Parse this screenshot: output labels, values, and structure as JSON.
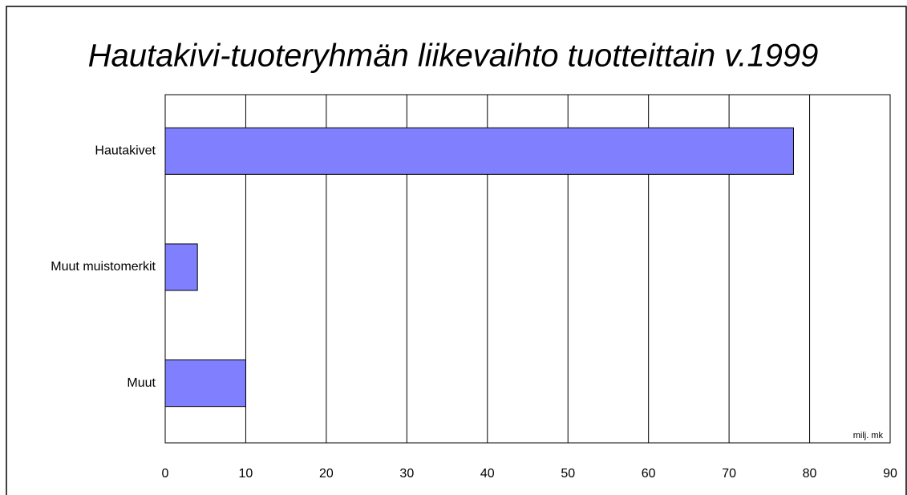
{
  "chart_data": {
    "type": "bar",
    "orientation": "horizontal",
    "title": "Hautakivi-tuoteryhmän liikevaihto tuotteittain v.1999",
    "categories": [
      "Hautakivet",
      "Muut muistomerkit",
      "Muut"
    ],
    "values": [
      78,
      4,
      10
    ],
    "color": "#8080ff",
    "xlim": [
      0,
      90
    ],
    "xticks": [
      0,
      10,
      20,
      30,
      40,
      50,
      60,
      70,
      80,
      90
    ],
    "grid": true,
    "annotation": "milj. mk"
  }
}
